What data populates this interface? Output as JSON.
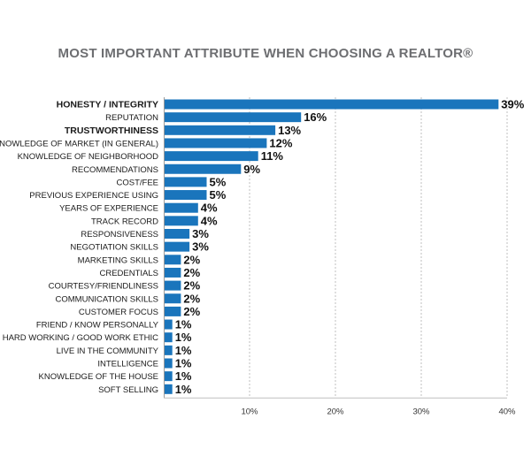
{
  "chart_data": {
    "type": "bar",
    "orientation": "horizontal",
    "title": "MOST IMPORTANT ATTRIBUTE WHEN CHOOSING A REALTOR®",
    "categories": [
      "HONESTY / INTEGRITY",
      "REPUTATION",
      "TRUSTWORTHINESS",
      "KNOWLEDGE OF MARKET (IN GENERAL)",
      "KNOWLEDGE OF NEIGHBORHOOD",
      "RECOMMENDATIONS",
      "COST/FEE",
      "PREVIOUS EXPERIENCE USING",
      "YEARS OF EXPERIENCE",
      "TRACK RECORD",
      "RESPONSIVENESS",
      "NEGOTIATION SKILLS",
      "MARKETING SKILLS",
      "CREDENTIALS",
      "COURTESY/FRIENDLINESS",
      "COMMUNICATION SKILLS",
      "CUSTOMER FOCUS",
      "FRIEND / KNOW PERSONALLY",
      "HARD WORKING / GOOD WORK ETHIC",
      "LIVE IN THE COMMUNITY",
      "INTELLIGENCE",
      "KNOWLEDGE OF THE HOUSE",
      "SOFT SELLING"
    ],
    "emphasized_categories": [
      "HONESTY / INTEGRITY",
      "TRUSTWORTHINESS"
    ],
    "values": [
      39,
      16,
      13,
      12,
      11,
      9,
      5,
      5,
      4,
      4,
      3,
      3,
      2,
      2,
      2,
      2,
      2,
      1,
      1,
      1,
      1,
      1,
      1
    ],
    "value_labels": [
      "39%",
      "16%",
      "13%",
      "12%",
      "11%",
      "9%",
      "5%",
      "5%",
      "4%",
      "4%",
      "3%",
      "3%",
      "2%",
      "2%",
      "2%",
      "2%",
      "2%",
      "1%",
      "1%",
      "1%",
      "1%",
      "1%",
      "1%"
    ],
    "xlim": [
      0,
      40
    ],
    "xticks": [
      10,
      20,
      30,
      40
    ],
    "xtick_labels": [
      "10%",
      "20%",
      "30%",
      "40%"
    ],
    "grid": "vertical dashed lines",
    "legend": "none",
    "bar_color": "#1a75bc"
  }
}
